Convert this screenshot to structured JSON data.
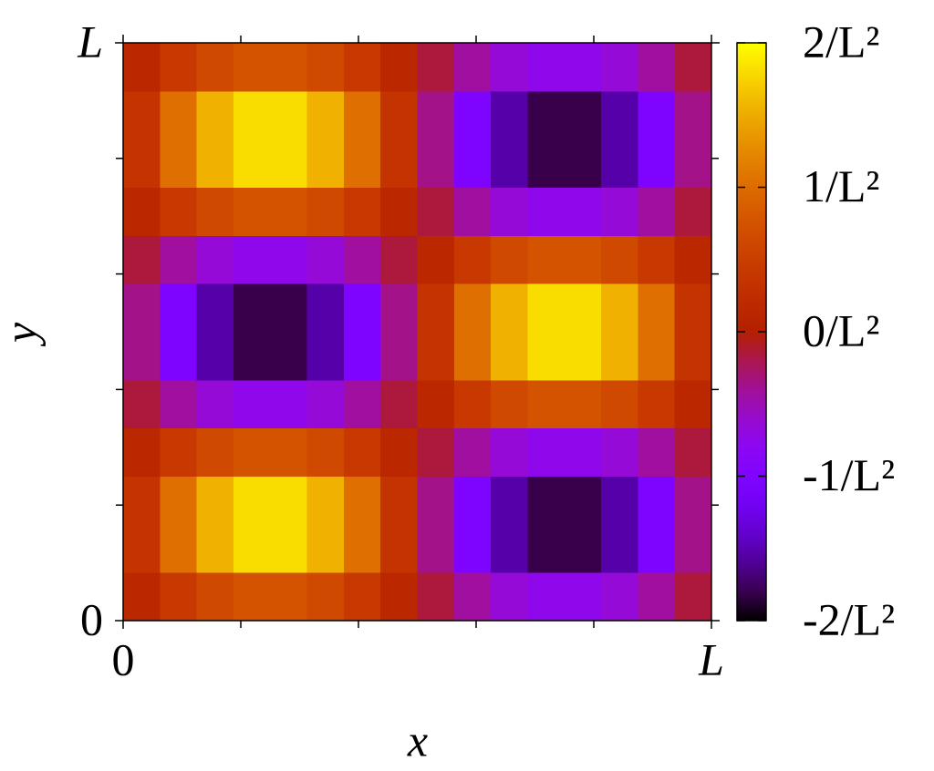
{
  "chart_data": {
    "type": "heatmap",
    "x_label": "x",
    "y_label": "y",
    "xlim": [
      0,
      1
    ],
    "ylim": [
      0,
      1
    ],
    "xticks": [
      {
        "value": 0,
        "label": "0"
      },
      {
        "value": 1,
        "label": "L"
      }
    ],
    "yticks": [
      {
        "value": 0,
        "label": "0"
      },
      {
        "value": 1,
        "label": "L"
      }
    ],
    "xminorticks": [
      0.2,
      0.4,
      0.6,
      0.8
    ],
    "yminorticks": [
      0.2,
      0.4,
      0.6,
      0.8
    ],
    "zlim": [
      -2,
      2
    ],
    "zticks": [
      {
        "value": -2,
        "label": "-2/L²"
      },
      {
        "value": -1,
        "label": "-1/L²"
      },
      {
        "value": 0,
        "label": "0/L²"
      },
      {
        "value": 1,
        "label": "1/L²"
      },
      {
        "value": 2,
        "label": "2/L²"
      }
    ],
    "z": [
      [
        0.15,
        0.43,
        0.64,
        0.75,
        0.75,
        0.64,
        0.43,
        0.15,
        -0.15,
        -0.43,
        -0.64,
        -0.75,
        -0.75,
        -0.64,
        -0.43,
        -0.15
      ],
      [
        0.36,
        1.03,
        1.54,
        1.81,
        1.81,
        1.54,
        1.03,
        0.36,
        -0.36,
        -1.03,
        -1.54,
        -1.81,
        -1.81,
        -1.54,
        -1.03,
        -0.36
      ],
      [
        0.36,
        1.03,
        1.54,
        1.81,
        1.81,
        1.54,
        1.03,
        0.36,
        -0.36,
        -1.03,
        -1.54,
        -1.81,
        -1.81,
        -1.54,
        -1.03,
        -0.36
      ],
      [
        0.15,
        0.43,
        0.64,
        0.75,
        0.75,
        0.64,
        0.43,
        0.15,
        -0.15,
        -0.43,
        -0.64,
        -0.75,
        -0.75,
        -0.64,
        -0.43,
        -0.15
      ],
      [
        -0.15,
        -0.43,
        -0.64,
        -0.75,
        -0.75,
        -0.64,
        -0.43,
        -0.15,
        0.15,
        0.43,
        0.64,
        0.75,
        0.75,
        0.64,
        0.43,
        0.15
      ],
      [
        -0.36,
        -1.03,
        -1.54,
        -1.81,
        -1.81,
        -1.54,
        -1.03,
        -0.36,
        0.36,
        1.03,
        1.54,
        1.81,
        1.81,
        1.54,
        1.03,
        0.36
      ],
      [
        -0.36,
        -1.03,
        -1.54,
        -1.81,
        -1.81,
        -1.54,
        -1.03,
        -0.36,
        0.36,
        1.03,
        1.54,
        1.81,
        1.81,
        1.54,
        1.03,
        0.36
      ],
      [
        -0.15,
        -0.43,
        -0.64,
        -0.75,
        -0.75,
        -0.64,
        -0.43,
        -0.15,
        0.15,
        0.43,
        0.64,
        0.75,
        0.75,
        0.64,
        0.43,
        0.15
      ],
      [
        0.15,
        0.43,
        0.64,
        0.75,
        0.75,
        0.64,
        0.43,
        0.15,
        -0.15,
        -0.43,
        -0.64,
        -0.75,
        -0.75,
        -0.64,
        -0.43,
        -0.15
      ],
      [
        0.36,
        1.03,
        1.54,
        1.81,
        1.81,
        1.54,
        1.03,
        0.36,
        -0.36,
        -1.03,
        -1.54,
        -1.81,
        -1.81,
        -1.54,
        -1.03,
        -0.36
      ],
      [
        0.36,
        1.03,
        1.54,
        1.81,
        1.81,
        1.54,
        1.03,
        0.36,
        -0.36,
        -1.03,
        -1.54,
        -1.81,
        -1.81,
        -1.54,
        -1.03,
        -0.36
      ],
      [
        0.15,
        0.43,
        0.64,
        0.75,
        0.75,
        0.64,
        0.43,
        0.15,
        -0.15,
        -0.43,
        -0.64,
        -0.75,
        -0.75,
        -0.64,
        -0.43,
        -0.15
      ]
    ]
  }
}
